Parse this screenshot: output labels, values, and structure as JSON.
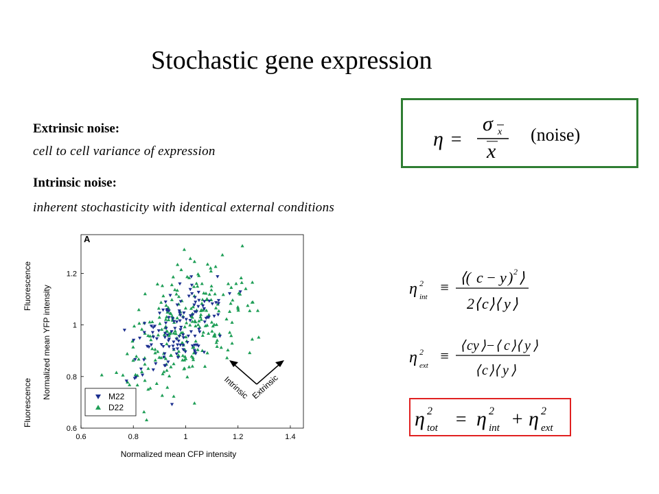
{
  "slide_title": "Stochastic gene expression",
  "extrinsic": {
    "heading": "Extrinsic noise:",
    "text": "cell to cell variance of expression"
  },
  "intrinsic": {
    "heading": "Intrinsic noise:",
    "text": "inherent stochasticity with identical external conditions"
  },
  "noise_box": {
    "label": "(noise)",
    "border_color": "#2e7d32"
  },
  "total_box": {
    "border_color": "#e02020"
  },
  "chart_data": {
    "type": "scatter",
    "panel_label": "A",
    "xlabel": "Normalized mean CFP intensity",
    "ylabel": "Normalized mean YFP intensity",
    "ylabel_outer_top": "Fluorescence",
    "ylabel_outer_bottom": "Fluorescence",
    "xlim": [
      0.6,
      1.45
    ],
    "ylim": [
      0.6,
      1.35
    ],
    "xticks": [
      "0.6",
      "0.8",
      "1",
      "1.2",
      "1.4"
    ],
    "yticks": [
      "0.6",
      "0.8",
      "1",
      "1.2"
    ],
    "annotations": [
      "Intrinsic",
      "Extrinsic"
    ],
    "legend_position": "bottom-left",
    "series": [
      {
        "name": "M22",
        "marker": "down-triangle",
        "color": "#1c2f8f",
        "center": [
          0.98,
          0.98
        ],
        "spread": [
          0.09,
          0.09
        ],
        "count": 130
      },
      {
        "name": "D22",
        "marker": "up-triangle",
        "color": "#1e9e56",
        "center": [
          1.0,
          0.98
        ],
        "spread": [
          0.12,
          0.13
        ],
        "count": 260
      }
    ]
  }
}
